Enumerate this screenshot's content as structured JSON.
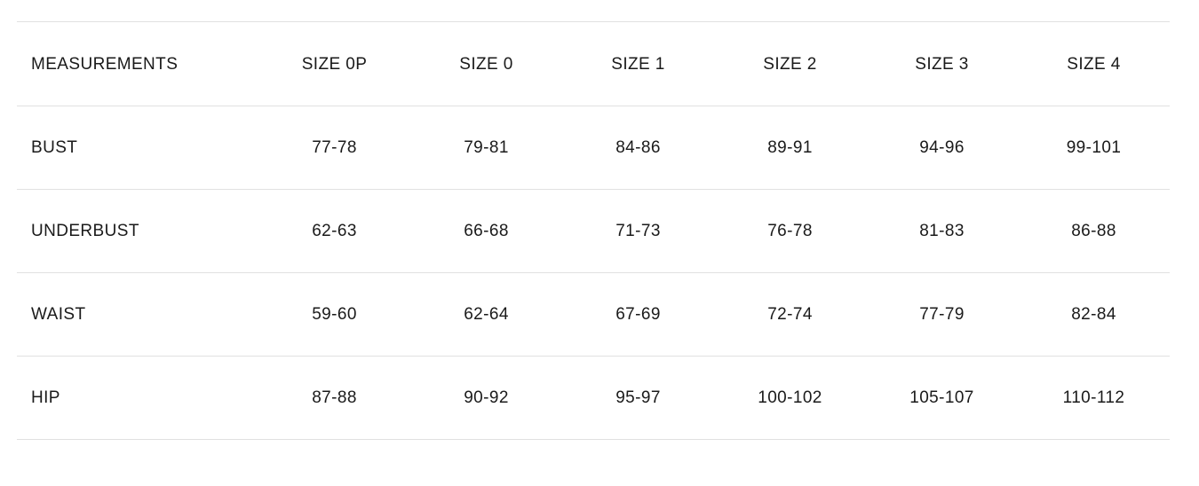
{
  "table": {
    "columns": [
      "MEASUREMENTS",
      "SIZE 0P",
      "SIZE 0",
      "SIZE 1",
      "SIZE 2",
      "SIZE 3",
      "SIZE 4"
    ],
    "rows": [
      {
        "label": "BUST",
        "values": [
          "77-78",
          "79-81",
          "84-86",
          "89-91",
          "94-96",
          "99-101"
        ]
      },
      {
        "label": "UNDERBUST",
        "values": [
          "62-63",
          "66-68",
          "71-73",
          "76-78",
          "81-83",
          "86-88"
        ]
      },
      {
        "label": "WAIST",
        "values": [
          "59-60",
          "62-64",
          "67-69",
          "72-74",
          "77-79",
          "82-84"
        ]
      },
      {
        "label": "HIP",
        "values": [
          "87-88",
          "90-92",
          "95-97",
          "100-102",
          "105-107",
          "110-112"
        ]
      }
    ]
  },
  "colors": {
    "border": "#e1e1e1",
    "text": "#1a1a1a",
    "background": "#ffffff"
  }
}
